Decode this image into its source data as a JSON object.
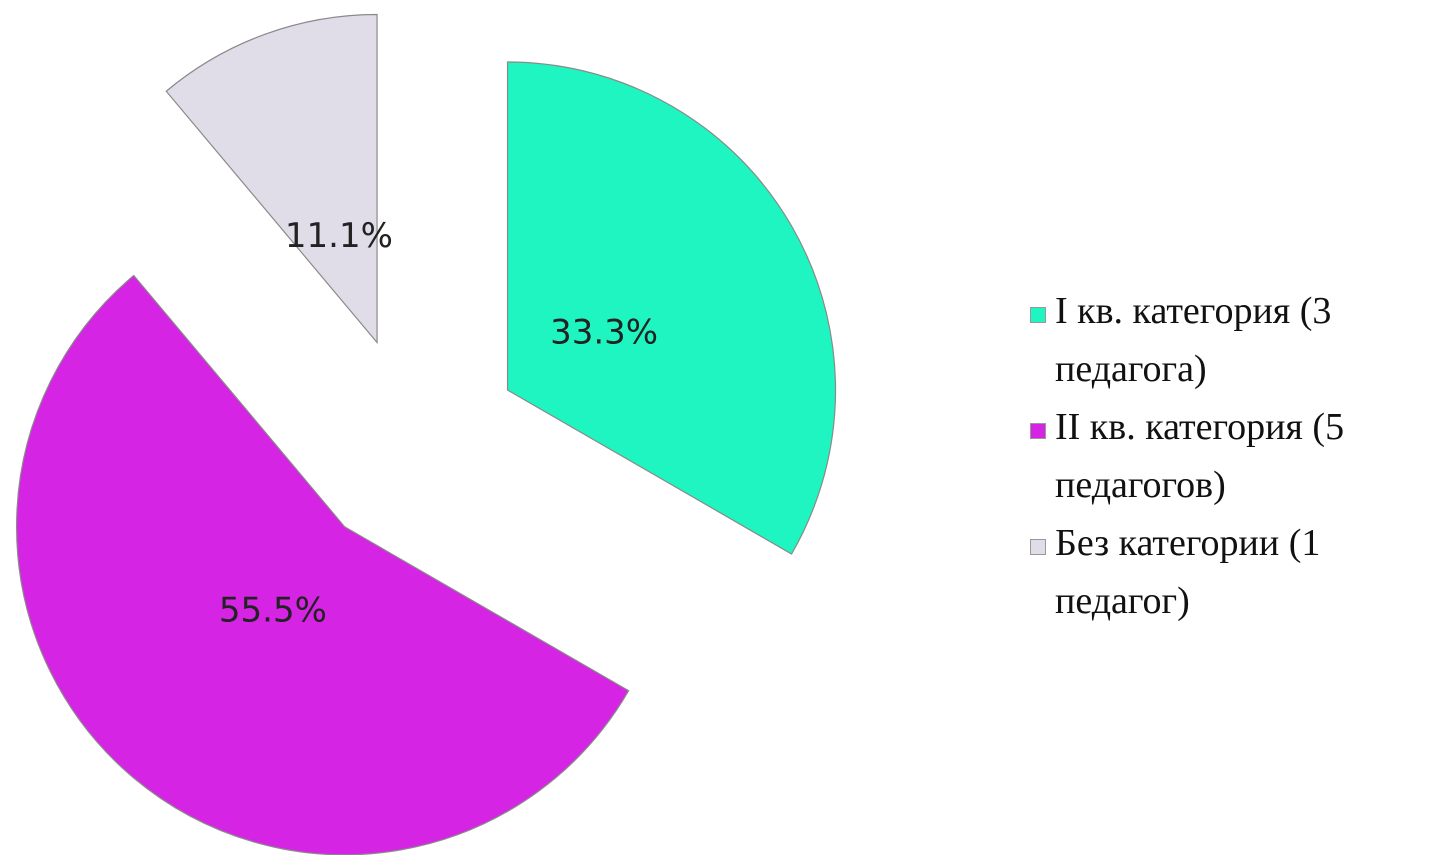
{
  "chart_data": {
    "type": "pie",
    "categories": [
      "I кв. категория (3 педагога)",
      "II кв. категория (5 педагогов)",
      "Без категории (1 педагог)"
    ],
    "values": [
      33.3,
      55.5,
      11.1
    ],
    "value_labels": [
      "33.3%",
      "55.5%",
      "11.1%"
    ],
    "colors": [
      "#1ef5c0",
      "#d524e4",
      "#e0dde9"
    ],
    "legend": "right"
  }
}
